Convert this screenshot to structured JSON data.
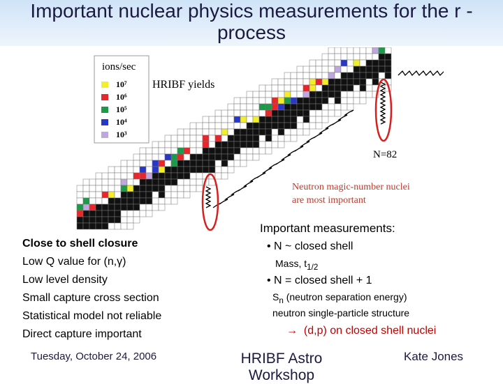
{
  "header": {
    "title": "Important nuclear physics measurements for the r -process"
  },
  "figure": {
    "legend_title": "ions/sec",
    "legend_items": [
      "10⁷",
      "10⁶",
      "10⁵",
      "10⁴",
      "10³"
    ],
    "yields_label": "HRIBF yields",
    "n82_label": "N=82",
    "annotation": [
      "Neutron magic-number nuclei",
      "are most important"
    ]
  },
  "left_list": [
    "Close to shell closure",
    "Low Q value for (n,γ)",
    "Low level density",
    "Small capture cross section",
    "Statistical model not reliable",
    "Direct capture important"
  ],
  "right": {
    "heading": "Important measurements:",
    "bullet_1": "N ~ closed shell",
    "bullet_1_sub": {
      "main": "Mass, t",
      "subscript": "1/2"
    },
    "bullet_2": "N = closed shell + 1",
    "bullet_2_sub_1": {
      "main": "S",
      "subscript": "n",
      "rest": " (neutron separation energy)"
    },
    "bullet_2_sub_2": "neutron single-particle structure",
    "arrow_item": {
      "symbol": "→",
      "text": "(d,p) on closed shell nuclei"
    }
  },
  "footer": {
    "date": "Tuesday, October 24, 2006",
    "center": [
      "HRIBF Astro",
      "Workshop"
    ],
    "author": "Kate Jones"
  }
}
